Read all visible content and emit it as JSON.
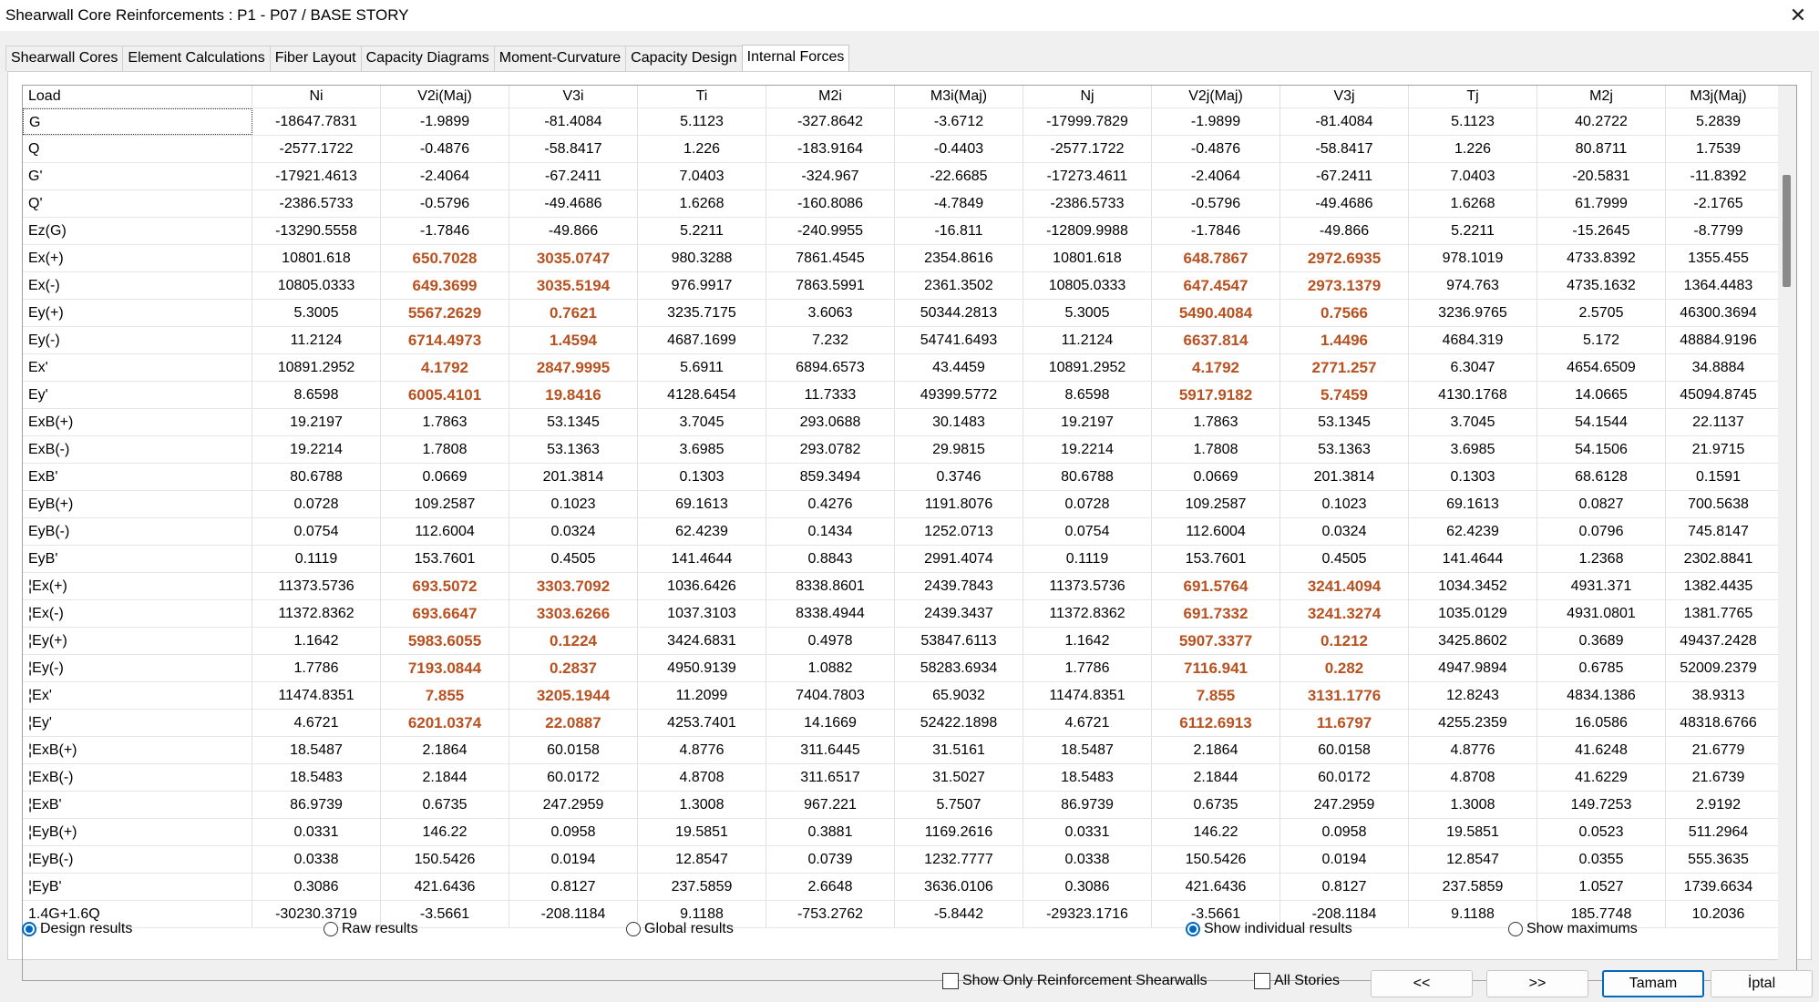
{
  "window": {
    "title": "Shearwall Core Reinforcements  :  P1 - P07 / BASE STORY",
    "close_glyph": "✕"
  },
  "tabs": [
    {
      "label": "Shearwall Cores",
      "active": false
    },
    {
      "label": "Element Calculations",
      "active": false
    },
    {
      "label": "Fiber Layout",
      "active": false
    },
    {
      "label": "Capacity Diagrams",
      "active": false
    },
    {
      "label": "Moment-Curvature",
      "active": false
    },
    {
      "label": "Capacity Design",
      "active": false
    },
    {
      "label": "Internal Forces",
      "active": true
    }
  ],
  "table": {
    "highlight_color": "#b8511f",
    "columns": [
      "Load",
      "Ni",
      "V2i(Maj)",
      "V3i",
      "Ti",
      "M2i",
      "M3i(Maj)",
      "Nj",
      "V2j(Maj)",
      "V3j",
      "Tj",
      "M2j",
      "M3j(Maj)"
    ],
    "rows": [
      {
        "cells": [
          "G",
          "-18647.7831",
          "-1.9899",
          "-81.4084",
          "5.1123",
          "-327.8642",
          "-3.6712",
          "-17999.7829",
          "-1.9899",
          "-81.4084",
          "5.1123",
          "40.2722",
          "5.2839"
        ],
        "hl": []
      },
      {
        "cells": [
          "Q",
          "-2577.1722",
          "-0.4876",
          "-58.8417",
          "1.226",
          "-183.9164",
          "-0.4403",
          "-2577.1722",
          "-0.4876",
          "-58.8417",
          "1.226",
          "80.8711",
          "1.7539"
        ],
        "hl": []
      },
      {
        "cells": [
          "G'",
          "-17921.4613",
          "-2.4064",
          "-67.2411",
          "7.0403",
          "-324.967",
          "-22.6685",
          "-17273.4611",
          "-2.4064",
          "-67.2411",
          "7.0403",
          "-20.5831",
          "-11.8392"
        ],
        "hl": []
      },
      {
        "cells": [
          "Q'",
          "-2386.5733",
          "-0.5796",
          "-49.4686",
          "1.6268",
          "-160.8086",
          "-4.7849",
          "-2386.5733",
          "-0.5796",
          "-49.4686",
          "1.6268",
          "61.7999",
          "-2.1765"
        ],
        "hl": []
      },
      {
        "cells": [
          "Ez(G)",
          "-13290.5558",
          "-1.7846",
          "-49.866",
          "5.2211",
          "-240.9955",
          "-16.811",
          "-12809.9988",
          "-1.7846",
          "-49.866",
          "5.2211",
          "-15.2645",
          "-8.7799"
        ],
        "hl": []
      },
      {
        "cells": [
          "Ex(+)",
          "10801.618",
          "650.7028",
          "3035.0747",
          "980.3288",
          "7861.4545",
          "2354.8616",
          "10801.618",
          "648.7867",
          "2972.6935",
          "978.1019",
          "4733.8392",
          "1355.455"
        ],
        "hl": [
          2,
          3,
          8,
          9
        ]
      },
      {
        "cells": [
          "Ex(-)",
          "10805.0333",
          "649.3699",
          "3035.5194",
          "976.9917",
          "7863.5991",
          "2361.3502",
          "10805.0333",
          "647.4547",
          "2973.1379",
          "974.763",
          "4735.1632",
          "1364.4483"
        ],
        "hl": [
          2,
          3,
          8,
          9
        ]
      },
      {
        "cells": [
          "Ey(+)",
          "5.3005",
          "5567.2629",
          "0.7621",
          "3235.7175",
          "3.6063",
          "50344.2813",
          "5.3005",
          "5490.4084",
          "0.7566",
          "3236.9765",
          "2.5705",
          "46300.3694"
        ],
        "hl": [
          2,
          3,
          8,
          9
        ]
      },
      {
        "cells": [
          "Ey(-)",
          "11.2124",
          "6714.4973",
          "1.4594",
          "4687.1699",
          "7.232",
          "54741.6493",
          "11.2124",
          "6637.814",
          "1.4496",
          "4684.319",
          "5.172",
          "48884.9196"
        ],
        "hl": [
          2,
          3,
          8,
          9
        ]
      },
      {
        "cells": [
          "Ex'",
          "10891.2952",
          "4.1792",
          "2847.9995",
          "5.6911",
          "6894.6573",
          "43.4459",
          "10891.2952",
          "4.1792",
          "2771.257",
          "6.3047",
          "4654.6509",
          "34.8884"
        ],
        "hl": [
          2,
          3,
          8,
          9
        ]
      },
      {
        "cells": [
          "Ey'",
          "8.6598",
          "6005.4101",
          "19.8416",
          "4128.6454",
          "11.7333",
          "49399.5772",
          "8.6598",
          "5917.9182",
          "5.7459",
          "4130.1768",
          "14.0665",
          "45094.8745"
        ],
        "hl": [
          2,
          3,
          8,
          9
        ]
      },
      {
        "cells": [
          "ExB(+)",
          "19.2197",
          "1.7863",
          "53.1345",
          "3.7045",
          "293.0688",
          "30.1483",
          "19.2197",
          "1.7863",
          "53.1345",
          "3.7045",
          "54.1544",
          "22.1137"
        ],
        "hl": []
      },
      {
        "cells": [
          "ExB(-)",
          "19.2214",
          "1.7808",
          "53.1363",
          "3.6985",
          "293.0782",
          "29.9815",
          "19.2214",
          "1.7808",
          "53.1363",
          "3.6985",
          "54.1506",
          "21.9715"
        ],
        "hl": []
      },
      {
        "cells": [
          "ExB'",
          "80.6788",
          "0.0669",
          "201.3814",
          "0.1303",
          "859.3494",
          "0.3746",
          "80.6788",
          "0.0669",
          "201.3814",
          "0.1303",
          "68.6128",
          "0.1591"
        ],
        "hl": []
      },
      {
        "cells": [
          "EyB(+)",
          "0.0728",
          "109.2587",
          "0.1023",
          "69.1613",
          "0.4276",
          "1191.8076",
          "0.0728",
          "109.2587",
          "0.1023",
          "69.1613",
          "0.0827",
          "700.5638"
        ],
        "hl": []
      },
      {
        "cells": [
          "EyB(-)",
          "0.0754",
          "112.6004",
          "0.0324",
          "62.4239",
          "0.1434",
          "1252.0713",
          "0.0754",
          "112.6004",
          "0.0324",
          "62.4239",
          "0.0796",
          "745.8147"
        ],
        "hl": []
      },
      {
        "cells": [
          "EyB'",
          "0.1119",
          "153.7601",
          "0.4505",
          "141.4644",
          "0.8843",
          "2991.4074",
          "0.1119",
          "153.7601",
          "0.4505",
          "141.4644",
          "1.2368",
          "2302.8841"
        ],
        "hl": []
      },
      {
        "cells": [
          "¦Ex(+)",
          "11373.5736",
          "693.5072",
          "3303.7092",
          "1036.6426",
          "8338.8601",
          "2439.7843",
          "11373.5736",
          "691.5764",
          "3241.4094",
          "1034.3452",
          "4931.371",
          "1382.4435"
        ],
        "hl": [
          2,
          3,
          8,
          9
        ]
      },
      {
        "cells": [
          "¦Ex(-)",
          "11372.8362",
          "693.6647",
          "3303.6266",
          "1037.3103",
          "8338.4944",
          "2439.3437",
          "11372.8362",
          "691.7332",
          "3241.3274",
          "1035.0129",
          "4931.0801",
          "1381.7765"
        ],
        "hl": [
          2,
          3,
          8,
          9
        ]
      },
      {
        "cells": [
          "¦Ey(+)",
          "1.1642",
          "5983.6055",
          "0.1224",
          "3424.6831",
          "0.4978",
          "53847.6113",
          "1.1642",
          "5907.3377",
          "0.1212",
          "3425.8602",
          "0.3689",
          "49437.2428"
        ],
        "hl": [
          2,
          3,
          8,
          9
        ]
      },
      {
        "cells": [
          "¦Ey(-)",
          "1.7786",
          "7193.0844",
          "0.2837",
          "4950.9139",
          "1.0882",
          "58283.6934",
          "1.7786",
          "7116.941",
          "0.282",
          "4947.9894",
          "0.6785",
          "52009.2379"
        ],
        "hl": [
          2,
          3,
          8,
          9
        ]
      },
      {
        "cells": [
          "¦Ex'",
          "11474.8351",
          "7.855",
          "3205.1944",
          "11.2099",
          "7404.7803",
          "65.9032",
          "11474.8351",
          "7.855",
          "3131.1776",
          "12.8243",
          "4834.1386",
          "38.9313"
        ],
        "hl": [
          2,
          3,
          8,
          9
        ]
      },
      {
        "cells": [
          "¦Ey'",
          "4.6721",
          "6201.0374",
          "22.0887",
          "4253.7401",
          "14.1669",
          "52422.1898",
          "4.6721",
          "6112.6913",
          "11.6797",
          "4255.2359",
          "16.0586",
          "48318.6766"
        ],
        "hl": [
          2,
          3,
          8,
          9
        ]
      },
      {
        "cells": [
          "¦ExB(+)",
          "18.5487",
          "2.1864",
          "60.0158",
          "4.8776",
          "311.6445",
          "31.5161",
          "18.5487",
          "2.1864",
          "60.0158",
          "4.8776",
          "41.6248",
          "21.6779"
        ],
        "hl": []
      },
      {
        "cells": [
          "¦ExB(-)",
          "18.5483",
          "2.1844",
          "60.0172",
          "4.8708",
          "311.6517",
          "31.5027",
          "18.5483",
          "2.1844",
          "60.0172",
          "4.8708",
          "41.6229",
          "21.6739"
        ],
        "hl": []
      },
      {
        "cells": [
          "¦ExB'",
          "86.9739",
          "0.6735",
          "247.2959",
          "1.3008",
          "967.221",
          "5.7507",
          "86.9739",
          "0.6735",
          "247.2959",
          "1.3008",
          "149.7253",
          "2.9192"
        ],
        "hl": []
      },
      {
        "cells": [
          "¦EyB(+)",
          "0.0331",
          "146.22",
          "0.0958",
          "19.5851",
          "0.3881",
          "1169.2616",
          "0.0331",
          "146.22",
          "0.0958",
          "19.5851",
          "0.0523",
          "511.2964"
        ],
        "hl": []
      },
      {
        "cells": [
          "¦EyB(-)",
          "0.0338",
          "150.5426",
          "0.0194",
          "12.8547",
          "0.0739",
          "1232.7777",
          "0.0338",
          "150.5426",
          "0.0194",
          "12.8547",
          "0.0355",
          "555.3635"
        ],
        "hl": []
      },
      {
        "cells": [
          "¦EyB'",
          "0.3086",
          "421.6436",
          "0.8127",
          "237.5859",
          "2.6648",
          "3636.0106",
          "0.3086",
          "421.6436",
          "0.8127",
          "237.5859",
          "1.0527",
          "1739.6634"
        ],
        "hl": []
      },
      {
        "cells": [
          "1.4G+1.6Q",
          "-30230.3719",
          "-3.5661",
          "-208.1184",
          "9.1188",
          "-753.2762",
          "-5.8442",
          "-29323.1716",
          "-3.5661",
          "-208.1184",
          "9.1188",
          "185.7748",
          "10.2036"
        ],
        "hl": []
      }
    ]
  },
  "options": {
    "design_results": {
      "label": "Design results",
      "checked": true
    },
    "raw_results": {
      "label": "Raw results",
      "checked": false
    },
    "global_results": {
      "label": "Global results",
      "checked": false
    },
    "show_individual": {
      "label": "Show individual results",
      "checked": true
    },
    "show_maximums": {
      "label": "Show maximums",
      "checked": false
    }
  },
  "footer": {
    "show_only_reinf": {
      "label": "Show Only Reinforcement Shearwalls",
      "checked": false
    },
    "all_stories": {
      "label": "All Stories",
      "checked": false
    },
    "prev_label": "<<",
    "next_label": ">>",
    "ok_label": "Tamam",
    "cancel_label": "İptal"
  }
}
